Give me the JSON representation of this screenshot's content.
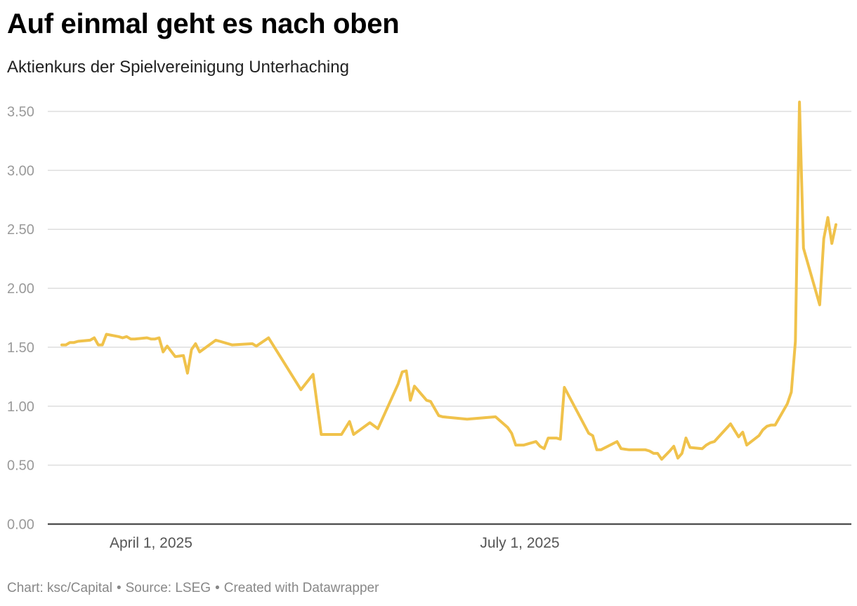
{
  "chart_data": {
    "type": "line",
    "title": "Auf einmal geht es nach oben",
    "subtitle": "Aktienkurs der Spielvereinigung Unterhaching",
    "xlabel": "",
    "ylabel": "",
    "ylim": [
      0,
      3.5
    ],
    "y_ticks": [
      "0.00",
      "0.50",
      "1.00",
      "1.50",
      "2.00",
      "2.50",
      "3.00",
      "3.50"
    ],
    "y_tick_values": [
      0,
      0.5,
      1.0,
      1.5,
      2.0,
      2.5,
      3.0,
      3.5
    ],
    "x_range": [
      "2025-03-10",
      "2025-09-30"
    ],
    "x_ticks": [
      {
        "date": "2025-04-01",
        "label": "April 1, 2025"
      },
      {
        "date": "2025-07-01",
        "label": "July 1, 2025"
      }
    ],
    "grid": true,
    "line_color": "#f0c24b",
    "series": [
      {
        "points": [
          [
            "2025-03-10",
            1.52
          ],
          [
            "2025-03-11",
            1.52
          ],
          [
            "2025-03-12",
            1.54
          ],
          [
            "2025-03-13",
            1.54
          ],
          [
            "2025-03-14",
            1.55
          ],
          [
            "2025-03-17",
            1.56
          ],
          [
            "2025-03-18",
            1.58
          ],
          [
            "2025-03-19",
            1.52
          ],
          [
            "2025-03-20",
            1.52
          ],
          [
            "2025-03-21",
            1.61
          ],
          [
            "2025-03-24",
            1.59
          ],
          [
            "2025-03-25",
            1.58
          ],
          [
            "2025-03-26",
            1.59
          ],
          [
            "2025-03-27",
            1.57
          ],
          [
            "2025-03-28",
            1.57
          ],
          [
            "2025-03-31",
            1.58
          ],
          [
            "2025-04-01",
            1.57
          ],
          [
            "2025-04-02",
            1.57
          ],
          [
            "2025-04-03",
            1.58
          ],
          [
            "2025-04-04",
            1.46
          ],
          [
            "2025-04-05",
            1.51
          ],
          [
            "2025-04-07",
            1.42
          ],
          [
            "2025-04-09",
            1.43
          ],
          [
            "2025-04-10",
            1.28
          ],
          [
            "2025-04-11",
            1.48
          ],
          [
            "2025-04-12",
            1.53
          ],
          [
            "2025-04-13",
            1.46
          ],
          [
            "2025-04-17",
            1.56
          ],
          [
            "2025-04-18",
            1.55
          ],
          [
            "2025-04-21",
            1.52
          ],
          [
            "2025-04-26",
            1.53
          ],
          [
            "2025-04-27",
            1.51
          ],
          [
            "2025-04-30",
            1.58
          ],
          [
            "2025-05-08",
            1.14
          ],
          [
            "2025-05-11",
            1.27
          ],
          [
            "2025-05-13",
            0.76
          ],
          [
            "2025-05-18",
            0.76
          ],
          [
            "2025-05-20",
            0.87
          ],
          [
            "2025-05-21",
            0.76
          ],
          [
            "2025-05-25",
            0.86
          ],
          [
            "2025-05-27",
            0.81
          ],
          [
            "2025-06-01",
            1.19
          ],
          [
            "2025-06-02",
            1.29
          ],
          [
            "2025-06-03",
            1.3
          ],
          [
            "2025-06-04",
            1.05
          ],
          [
            "2025-06-05",
            1.17
          ],
          [
            "2025-06-08",
            1.05
          ],
          [
            "2025-06-09",
            1.04
          ],
          [
            "2025-06-11",
            0.92
          ],
          [
            "2025-06-12",
            0.91
          ],
          [
            "2025-06-18",
            0.89
          ],
          [
            "2025-06-25",
            0.91
          ],
          [
            "2025-06-28",
            0.82
          ],
          [
            "2025-06-29",
            0.77
          ],
          [
            "2025-06-30",
            0.67
          ],
          [
            "2025-07-02",
            0.67
          ],
          [
            "2025-07-05",
            0.7
          ],
          [
            "2025-07-06",
            0.66
          ],
          [
            "2025-07-07",
            0.64
          ],
          [
            "2025-07-08",
            0.73
          ],
          [
            "2025-07-10",
            0.73
          ],
          [
            "2025-07-11",
            0.72
          ],
          [
            "2025-07-12",
            1.16
          ],
          [
            "2025-07-18",
            0.77
          ],
          [
            "2025-07-19",
            0.75
          ],
          [
            "2025-07-20",
            0.63
          ],
          [
            "2025-07-21",
            0.63
          ],
          [
            "2025-07-25",
            0.7
          ],
          [
            "2025-07-26",
            0.64
          ],
          [
            "2025-07-28",
            0.63
          ],
          [
            "2025-08-01",
            0.63
          ],
          [
            "2025-08-02",
            0.62
          ],
          [
            "2025-08-03",
            0.6
          ],
          [
            "2025-08-04",
            0.6
          ],
          [
            "2025-08-05",
            0.55
          ],
          [
            "2025-08-07",
            0.62
          ],
          [
            "2025-08-08",
            0.66
          ],
          [
            "2025-08-09",
            0.56
          ],
          [
            "2025-08-10",
            0.6
          ],
          [
            "2025-08-11",
            0.73
          ],
          [
            "2025-08-12",
            0.65
          ],
          [
            "2025-08-15",
            0.64
          ],
          [
            "2025-08-16",
            0.67
          ],
          [
            "2025-08-17",
            0.69
          ],
          [
            "2025-08-18",
            0.7
          ],
          [
            "2025-08-22",
            0.85
          ],
          [
            "2025-08-24",
            0.74
          ],
          [
            "2025-08-25",
            0.78
          ],
          [
            "2025-08-26",
            0.67
          ],
          [
            "2025-08-29",
            0.75
          ],
          [
            "2025-08-30",
            0.8
          ],
          [
            "2025-08-31",
            0.83
          ],
          [
            "2025-09-01",
            0.84
          ],
          [
            "2025-09-02",
            0.84
          ],
          [
            "2025-09-05",
            1.02
          ],
          [
            "2025-09-06",
            1.12
          ],
          [
            "2025-09-07",
            1.55
          ],
          [
            "2025-09-08",
            3.58
          ],
          [
            "2025-09-09",
            2.34
          ],
          [
            "2025-09-13",
            1.86
          ],
          [
            "2025-09-14",
            2.42
          ],
          [
            "2025-09-15",
            2.6
          ],
          [
            "2025-09-16",
            2.38
          ],
          [
            "2025-09-17",
            2.54
          ]
        ]
      }
    ]
  },
  "footer": {
    "credit": "Chart: ksc/Capital",
    "source": "Source: LSEG",
    "tool": "Created with Datawrapper",
    "separator": "•"
  }
}
